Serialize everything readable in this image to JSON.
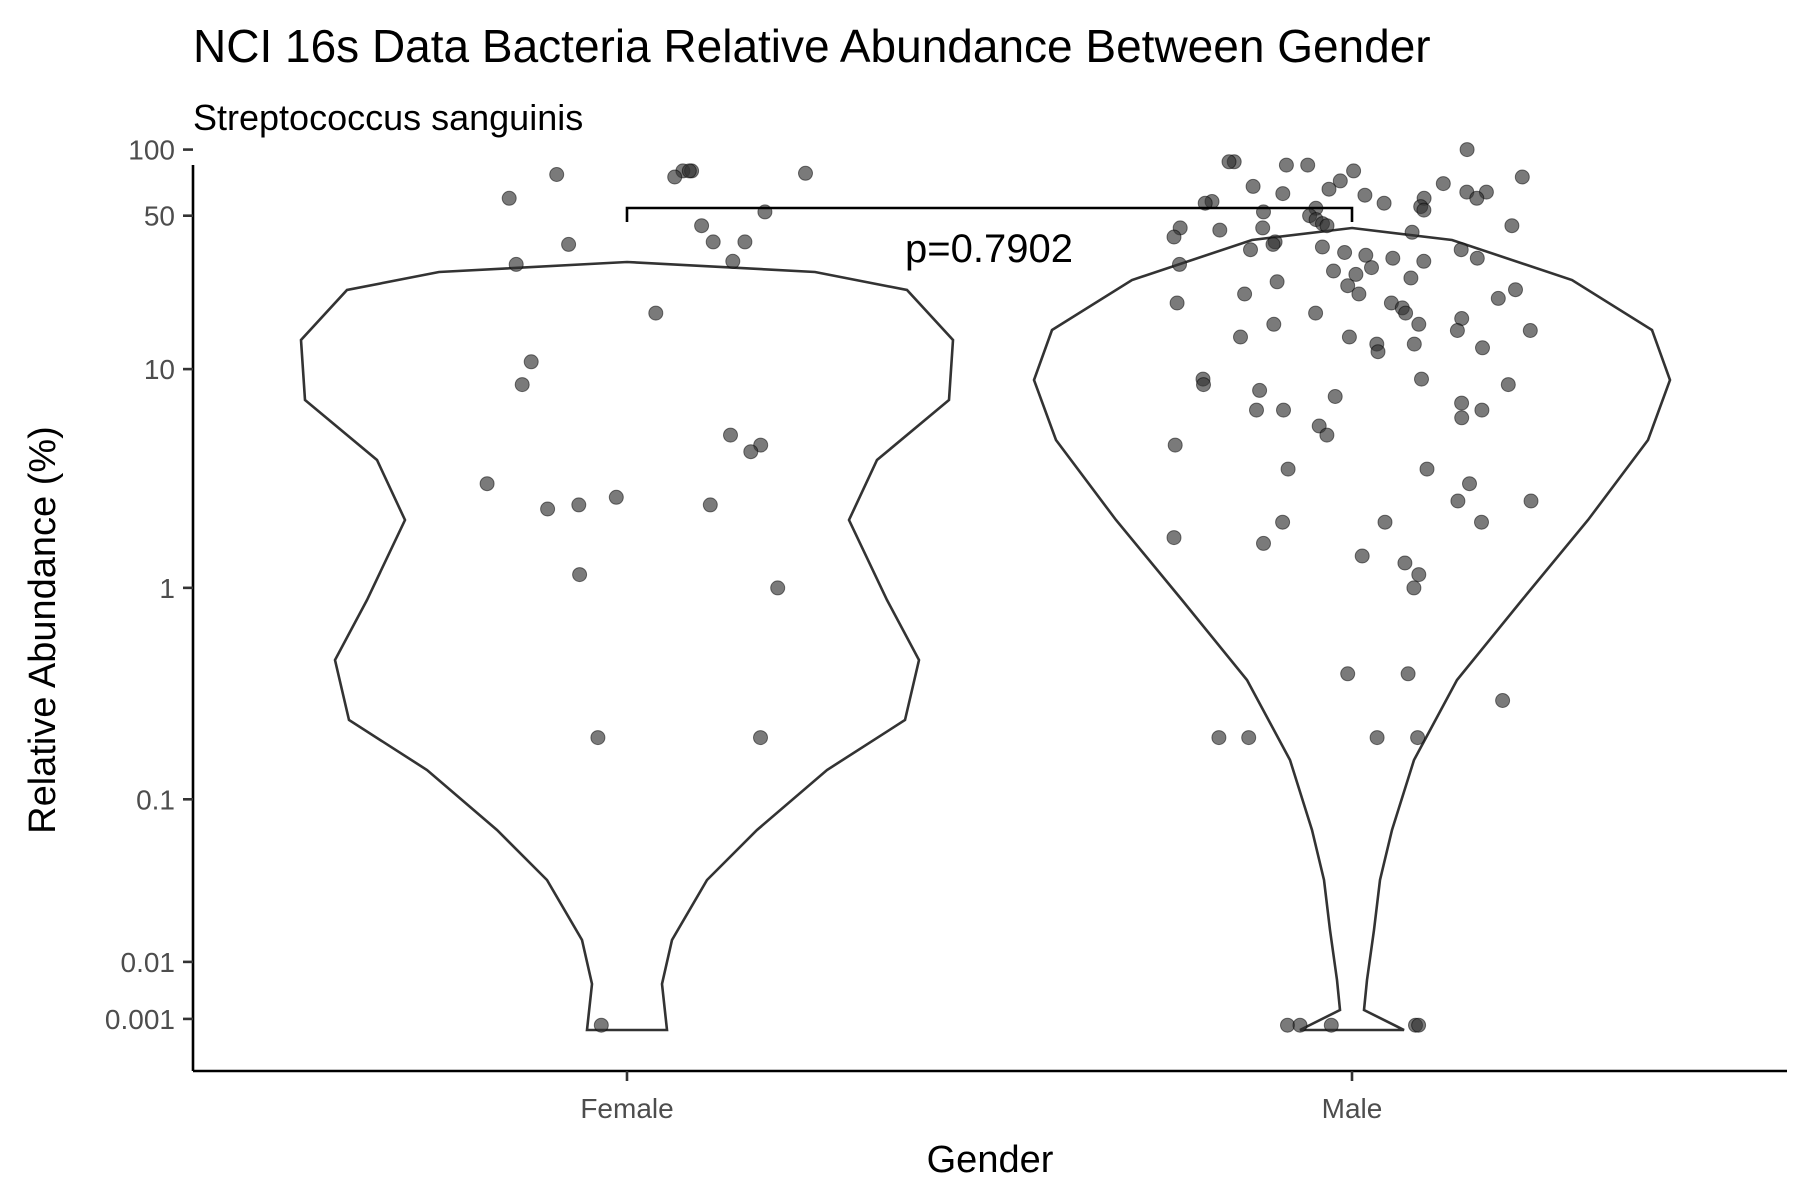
{
  "chart_data": {
    "type": "violin",
    "title": "NCI 16s Data Bacteria Relative Abundance Between Gender",
    "subtitle": "Streptococcus sanguinis",
    "xlabel": "Gender",
    "ylabel": "Relative Abundance (%)",
    "categories": [
      "Female",
      "Male"
    ],
    "y_scale": "pseudo-log",
    "y_ticks": [
      {
        "value": 100,
        "label": "100"
      },
      {
        "value": 50,
        "label": "50"
      },
      {
        "value": 10,
        "label": "10"
      },
      {
        "value": 1,
        "label": "1"
      },
      {
        "value": 0.1,
        "label": "0.1"
      },
      {
        "value": 0.01,
        "label": "0.01"
      },
      {
        "value": 0.001,
        "label": "0.001"
      }
    ],
    "annotation": {
      "text": "p=0.7902",
      "between": [
        "Female",
        "Male"
      ]
    },
    "grid": false,
    "legend": "none",
    "colors": {
      "outline": "#333333",
      "point": "#333333",
      "tick_text": "#4d4d4d"
    },
    "series": [
      {
        "category": "Female",
        "values": [
          80,
          77,
          75,
          78,
          80,
          80,
          60,
          52,
          45,
          38,
          38,
          37,
          31,
          30,
          18,
          10.8,
          8.5,
          5,
          4.5,
          4.2,
          3,
          2.6,
          2.4,
          2.4,
          2.3,
          1.15,
          1.0,
          0.2,
          0.2,
          0.0003
        ]
      },
      {
        "category": "Male",
        "values": [
          100,
          88,
          88,
          85,
          85,
          80,
          75,
          72,
          70,
          68,
          66,
          64,
          64,
          63,
          62,
          60,
          60,
          58,
          57,
          57,
          55,
          54,
          53,
          52,
          50,
          48,
          46,
          45,
          45,
          44,
          44,
          43,
          42,
          40,
          38,
          37,
          36,
          35,
          35,
          34,
          33,
          32,
          32,
          31,
          30,
          29,
          28,
          27,
          26,
          25,
          24,
          23,
          22,
          22,
          21,
          20,
          20,
          19,
          18,
          18,
          17,
          16,
          16,
          15,
          15,
          14,
          14,
          13,
          13,
          12.5,
          12,
          9,
          9,
          8.5,
          8.5,
          8,
          7.5,
          7,
          6.5,
          6.5,
          6.5,
          6,
          5.5,
          5,
          4.5,
          3.5,
          3.5,
          3,
          2.5,
          2.5,
          2,
          2,
          2,
          1.7,
          1.6,
          1.4,
          1.3,
          1.15,
          1.0,
          0.4,
          0.4,
          0.3,
          0.2,
          0.2,
          0.2,
          0.2,
          0.0003,
          0.0003,
          0.0003,
          0.0003,
          0.0003
        ]
      }
    ]
  }
}
